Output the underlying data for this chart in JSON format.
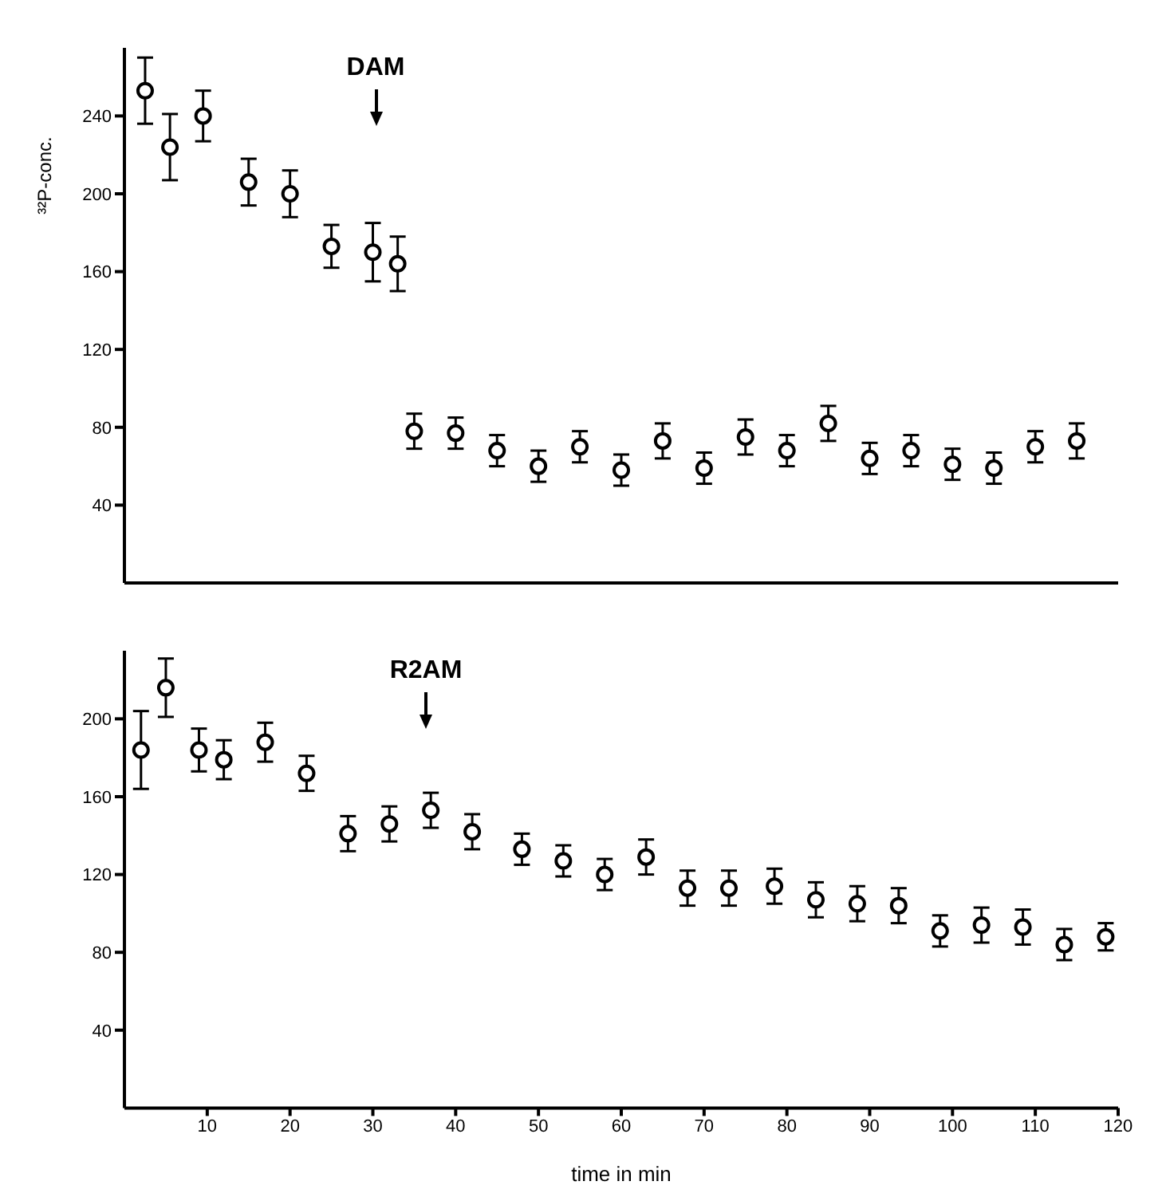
{
  "chart_data": [
    {
      "type": "scatter",
      "ylabel": "³²P-conc.",
      "marker": "circle",
      "grid": false,
      "tick_labels": "y",
      "xlim": [
        0,
        120
      ],
      "xticks": [
        10,
        20,
        30,
        40,
        50,
        60,
        70,
        80,
        90,
        100,
        110,
        120
      ],
      "ylim": [
        0,
        275
      ],
      "yticks": [
        40,
        80,
        120,
        160,
        200,
        240
      ],
      "annotations": [
        "DAM"
      ],
      "series": [
        {
          "color": "#000000",
          "x": [
            2.5,
            5.5,
            9.5,
            15,
            20,
            25,
            30,
            33,
            35,
            40,
            45,
            50,
            55,
            60,
            65,
            70,
            75,
            80,
            85,
            90,
            95,
            100,
            105,
            110,
            115
          ],
          "values": [
            253,
            224,
            240,
            206,
            200,
            173,
            170,
            164,
            78,
            77,
            68,
            60,
            70,
            58,
            73,
            59,
            75,
            68,
            82,
            64,
            68,
            61,
            59,
            70,
            73
          ],
          "errors": [
            17,
            17,
            13,
            12,
            12,
            11,
            15,
            14,
            9,
            8,
            8,
            8,
            8,
            8,
            9,
            8,
            9,
            8,
            9,
            8,
            8,
            8,
            8,
            8,
            9
          ]
        }
      ]
    },
    {
      "type": "scatter",
      "xlabel": "time in min",
      "marker": "circle",
      "grid": false,
      "xlim": [
        0,
        120
      ],
      "xticks": [
        10,
        20,
        30,
        40,
        50,
        60,
        70,
        80,
        90,
        100,
        110,
        120
      ],
      "ylim": [
        0,
        235
      ],
      "yticks": [
        40,
        80,
        120,
        160,
        200
      ],
      "annotations": [
        "R2AM"
      ],
      "series": [
        {
          "color": "#000000",
          "x": [
            2,
            5,
            9,
            12,
            17,
            22,
            27,
            32,
            37,
            42,
            48,
            53,
            58,
            63,
            68,
            73,
            78.5,
            83.5,
            88.5,
            93.5,
            98.5,
            103.5,
            108.5,
            113.5,
            118.5
          ],
          "values": [
            184,
            216,
            184,
            179,
            188,
            172,
            141,
            146,
            153,
            142,
            133,
            127,
            120,
            129,
            113,
            113,
            114,
            107,
            105,
            104,
            91,
            94,
            93,
            84,
            88
          ],
          "errors": [
            20,
            15,
            11,
            10,
            10,
            9,
            9,
            9,
            9,
            9,
            8,
            8,
            8,
            9,
            9,
            9,
            9,
            9,
            9,
            9,
            8,
            9,
            9,
            8,
            7
          ]
        }
      ]
    }
  ]
}
